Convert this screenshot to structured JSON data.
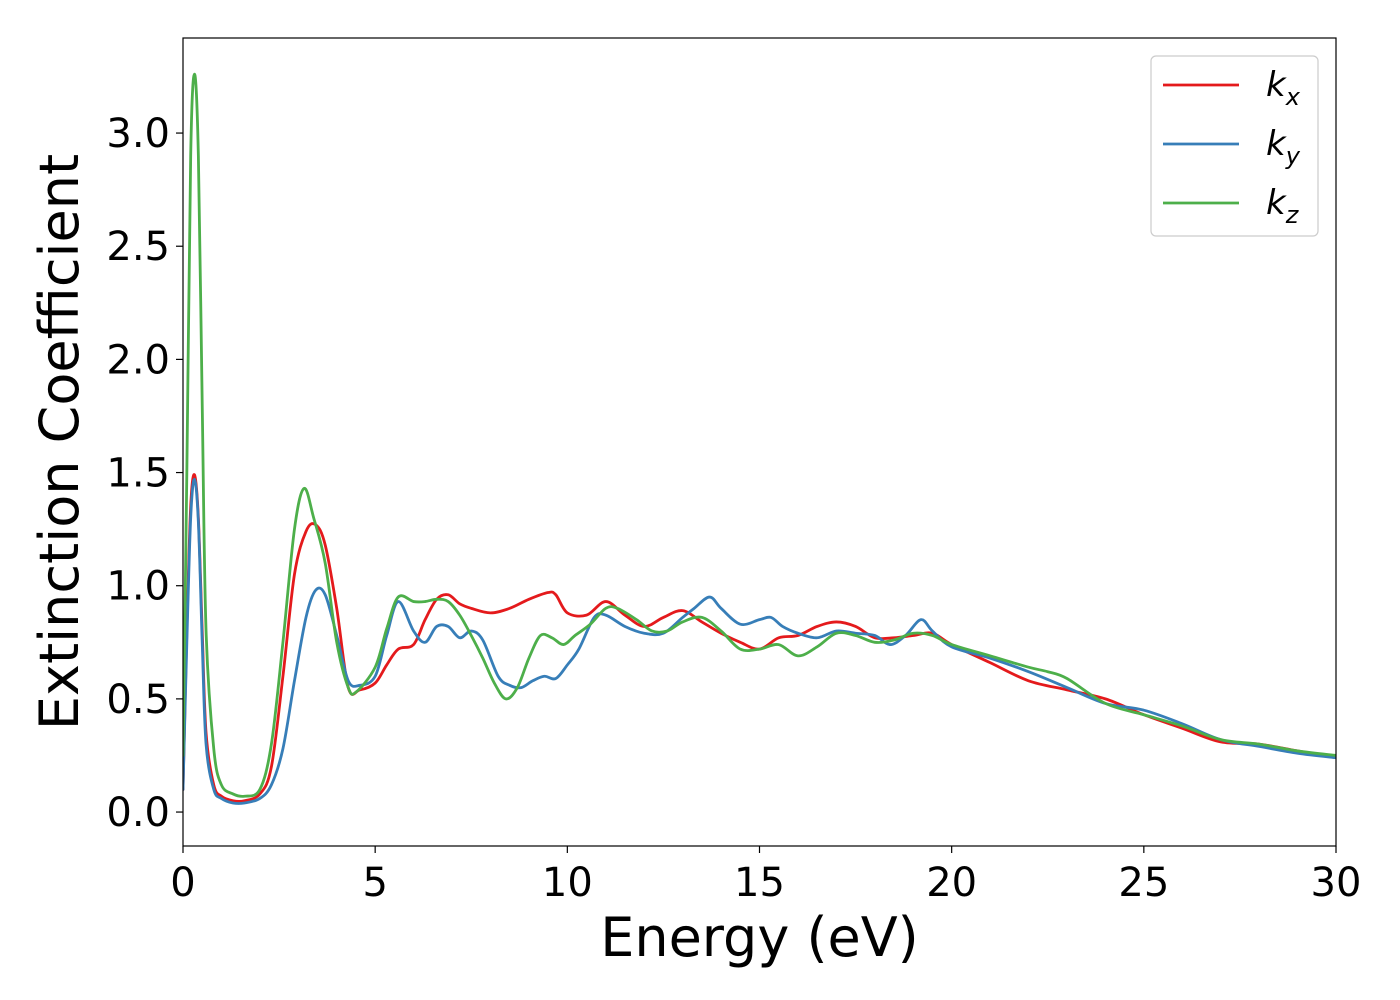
{
  "chart_data": {
    "type": "line",
    "title": "",
    "xlabel": "Energy (eV)",
    "ylabel": "Extinction Coefficient",
    "xlim": [
      0,
      30
    ],
    "ylim": [
      -0.15,
      3.42
    ],
    "xticks": [
      0,
      5,
      10,
      15,
      20,
      25,
      30
    ],
    "xtick_labels": [
      "0",
      "5",
      "10",
      "15",
      "20",
      "25",
      "30"
    ],
    "yticks": [
      0.0,
      0.5,
      1.0,
      1.5,
      2.0,
      2.5,
      3.0
    ],
    "ytick_labels": [
      "0.0",
      "0.5",
      "1.0",
      "1.5",
      "2.0",
      "2.5",
      "3.0"
    ],
    "grid": false,
    "legend_position": "top-right",
    "series": [
      {
        "name": "k",
        "subscript": "x",
        "color": "#e41a1c",
        "x": [
          0,
          0.1,
          0.2,
          0.3,
          0.4,
          0.5,
          0.6,
          0.8,
          1.0,
          1.3,
          1.6,
          2.0,
          2.3,
          2.6,
          2.9,
          3.2,
          3.45,
          3.7,
          4.0,
          4.3,
          4.6,
          5.0,
          5.3,
          5.6,
          6.0,
          6.3,
          6.6,
          6.9,
          7.2,
          7.5,
          8.0,
          8.5,
          9.0,
          9.5,
          9.7,
          10.0,
          10.5,
          11.0,
          11.5,
          12.0,
          12.5,
          13.0,
          13.5,
          14.0,
          14.5,
          15.0,
          15.5,
          16.0,
          16.5,
          17.0,
          17.5,
          18.0,
          18.5,
          19.0,
          19.5,
          20.0,
          21.0,
          22.0,
          23.0,
          24.0,
          25.0,
          26.0,
          27.0,
          28.0,
          29.0,
          30.0
        ],
        "values": [
          0.1,
          0.8,
          1.35,
          1.49,
          1.3,
          0.8,
          0.35,
          0.12,
          0.07,
          0.05,
          0.05,
          0.08,
          0.2,
          0.6,
          1.05,
          1.24,
          1.27,
          1.18,
          0.9,
          0.55,
          0.54,
          0.57,
          0.65,
          0.72,
          0.74,
          0.85,
          0.94,
          0.96,
          0.92,
          0.9,
          0.88,
          0.9,
          0.94,
          0.97,
          0.96,
          0.88,
          0.87,
          0.93,
          0.87,
          0.82,
          0.86,
          0.89,
          0.84,
          0.79,
          0.75,
          0.72,
          0.77,
          0.78,
          0.82,
          0.84,
          0.82,
          0.77,
          0.77,
          0.78,
          0.79,
          0.74,
          0.66,
          0.58,
          0.54,
          0.5,
          0.43,
          0.37,
          0.31,
          0.3,
          0.27,
          0.24
        ]
      },
      {
        "name": "k",
        "subscript": "y",
        "color": "#377eb8",
        "x": [
          0,
          0.1,
          0.2,
          0.3,
          0.4,
          0.5,
          0.6,
          0.8,
          1.0,
          1.3,
          1.6,
          2.0,
          2.3,
          2.6,
          2.9,
          3.2,
          3.45,
          3.7,
          4.0,
          4.3,
          4.6,
          5.0,
          5.3,
          5.6,
          6.0,
          6.3,
          6.6,
          6.9,
          7.2,
          7.5,
          7.8,
          8.2,
          8.5,
          8.8,
          9.1,
          9.4,
          9.7,
          10.0,
          10.3,
          10.7,
          11.0,
          11.5,
          12.0,
          12.5,
          13.0,
          13.3,
          13.7,
          14.0,
          14.5,
          15.0,
          15.3,
          15.6,
          16.0,
          16.5,
          17.0,
          17.5,
          18.0,
          18.4,
          18.8,
          19.2,
          19.5,
          20.0,
          21.0,
          22.0,
          23.0,
          24.0,
          25.0,
          26.0,
          27.0,
          28.0,
          29.0,
          30.0
        ],
        "values": [
          0.1,
          0.75,
          1.3,
          1.47,
          1.28,
          0.75,
          0.3,
          0.1,
          0.06,
          0.04,
          0.04,
          0.06,
          0.12,
          0.28,
          0.58,
          0.86,
          0.98,
          0.96,
          0.78,
          0.58,
          0.56,
          0.6,
          0.78,
          0.93,
          0.8,
          0.75,
          0.82,
          0.82,
          0.77,
          0.8,
          0.76,
          0.6,
          0.56,
          0.55,
          0.58,
          0.6,
          0.59,
          0.65,
          0.72,
          0.86,
          0.87,
          0.82,
          0.79,
          0.79,
          0.86,
          0.9,
          0.95,
          0.9,
          0.83,
          0.85,
          0.86,
          0.82,
          0.79,
          0.77,
          0.8,
          0.79,
          0.78,
          0.74,
          0.78,
          0.85,
          0.8,
          0.73,
          0.68,
          0.62,
          0.55,
          0.48,
          0.45,
          0.39,
          0.32,
          0.29,
          0.26,
          0.24
        ]
      },
      {
        "name": "k",
        "subscript": "z",
        "color": "#4daf4a",
        "x": [
          0,
          0.1,
          0.2,
          0.3,
          0.4,
          0.5,
          0.6,
          0.8,
          1.0,
          1.3,
          1.6,
          2.0,
          2.3,
          2.6,
          2.9,
          3.15,
          3.4,
          3.7,
          4.0,
          4.3,
          4.5,
          5.0,
          5.3,
          5.6,
          6.0,
          6.3,
          6.6,
          6.9,
          7.2,
          7.5,
          7.8,
          8.1,
          8.4,
          8.7,
          9.0,
          9.3,
          9.6,
          9.9,
          10.2,
          10.6,
          11.0,
          11.3,
          11.8,
          12.2,
          12.6,
          13.0,
          13.5,
          14.0,
          14.5,
          15.0,
          15.5,
          16.0,
          16.5,
          17.0,
          17.5,
          18.0,
          18.5,
          19.0,
          19.5,
          20.0,
          21.0,
          22.0,
          22.5,
          23.0,
          24.0,
          25.0,
          26.0,
          27.0,
          28.0,
          29.0,
          30.0
        ],
        "values": [
          0.25,
          1.5,
          2.9,
          3.26,
          2.9,
          1.8,
          0.8,
          0.28,
          0.12,
          0.08,
          0.07,
          0.1,
          0.3,
          0.75,
          1.25,
          1.43,
          1.3,
          1.1,
          0.75,
          0.55,
          0.53,
          0.64,
          0.81,
          0.95,
          0.93,
          0.93,
          0.94,
          0.93,
          0.87,
          0.78,
          0.68,
          0.57,
          0.5,
          0.55,
          0.68,
          0.78,
          0.77,
          0.74,
          0.78,
          0.83,
          0.9,
          0.9,
          0.85,
          0.8,
          0.8,
          0.84,
          0.86,
          0.8,
          0.72,
          0.72,
          0.74,
          0.69,
          0.73,
          0.79,
          0.78,
          0.75,
          0.76,
          0.79,
          0.78,
          0.74,
          0.69,
          0.64,
          0.62,
          0.59,
          0.48,
          0.43,
          0.38,
          0.32,
          0.3,
          0.27,
          0.25
        ]
      }
    ]
  }
}
